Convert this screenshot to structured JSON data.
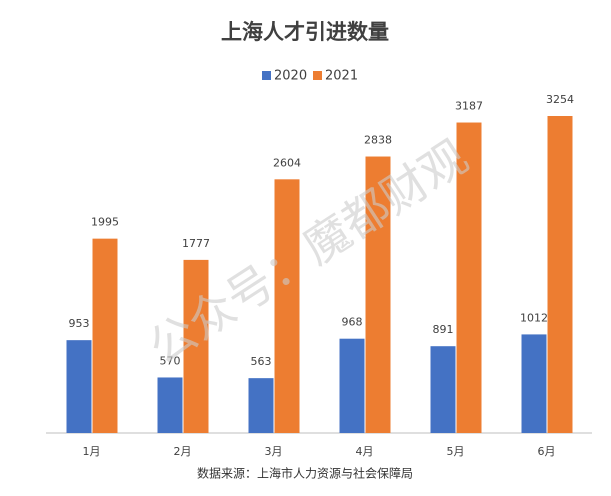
{
  "chart_data": {
    "type": "bar",
    "title": "上海人才引进数量",
    "categories": [
      "1月",
      "2月",
      "3月",
      "4月",
      "5月",
      "6月"
    ],
    "series": [
      {
        "name": "2020",
        "color": "#4472c4",
        "values": [
          953,
          570,
          563,
          968,
          891,
          1012
        ]
      },
      {
        "name": "2021",
        "color": "#ed7d31",
        "values": [
          1995,
          1777,
          2604,
          2838,
          3187,
          3254
        ]
      }
    ],
    "source": "数据来源：上海市人力资源与社会保障局",
    "watermark": "公众号：魔都财观"
  }
}
